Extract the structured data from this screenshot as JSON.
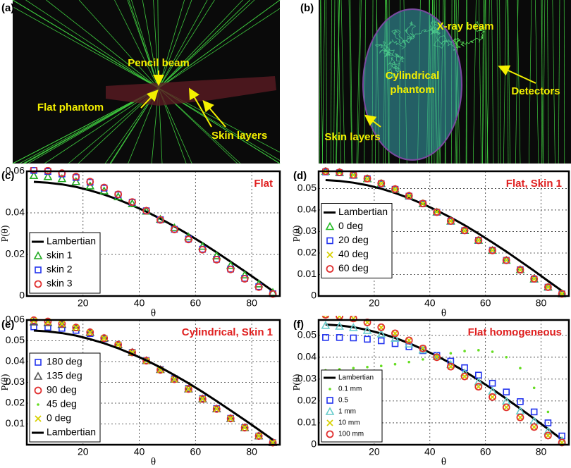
{
  "panels": [
    {
      "label": "(a)",
      "annotations": [
        "Pencil beam",
        "Flat phantom",
        "Skin layers"
      ]
    },
    {
      "label": "(b)",
      "annotations": [
        "X-ray beam",
        "Cylindrical",
        "phantom",
        "Detectors",
        "Skin layers"
      ]
    }
  ],
  "chart_data": [
    {
      "type": "line",
      "label": "(c)",
      "title": "Flat",
      "x_label": "θ",
      "y_label": "P(θ)",
      "x": [
        2.5,
        7.5,
        12.5,
        17.5,
        22.5,
        27.5,
        32.5,
        37.5,
        42.5,
        47.5,
        52.5,
        57.5,
        62.5,
        67.5,
        72.5,
        77.5,
        82.5,
        87.5
      ],
      "xlim": [
        0,
        90
      ],
      "xticks": [
        20,
        40,
        60,
        80
      ],
      "ylim": [
        0,
        0.06
      ],
      "yticks": [
        0,
        0.02,
        0.04,
        0.06
      ],
      "grid": true,
      "legend": "lower left",
      "series": [
        {
          "name": "Lambertian",
          "marker": "line",
          "color": "#000000",
          "values": [
            0.0549,
            0.0545,
            0.0537,
            0.0525,
            0.0508,
            0.0488,
            0.0464,
            0.0436,
            0.0406,
            0.0372,
            0.0335,
            0.0296,
            0.0254,
            0.021,
            0.0165,
            0.0119,
            0.0072,
            0.0024
          ]
        },
        {
          "name": "skin 1",
          "marker": "triangle",
          "color": "#22aa22",
          "values": [
            0.0579,
            0.0574,
            0.0564,
            0.055,
            0.0529,
            0.0505,
            0.0477,
            0.0444,
            0.0408,
            0.0369,
            0.0328,
            0.0284,
            0.0239,
            0.0193,
            0.0147,
            0.0101,
            0.0058,
            0.0017
          ]
        },
        {
          "name": "skin 2",
          "marker": "square",
          "color": "#2233ee",
          "values": [
            0.0604,
            0.0599,
            0.0587,
            0.057,
            0.0547,
            0.0519,
            0.0487,
            0.0451,
            0.041,
            0.0367,
            0.0321,
            0.0274,
            0.0225,
            0.0177,
            0.013,
            0.0085,
            0.0045,
            0.0011
          ]
        },
        {
          "name": "skin 3",
          "marker": "circle",
          "color": "#e03030",
          "values": [
            0.0609,
            0.0603,
            0.0591,
            0.0574,
            0.055,
            0.0522,
            0.0489,
            0.0452,
            0.041,
            0.0366,
            0.032,
            0.0272,
            0.0223,
            0.0175,
            0.0128,
            0.0083,
            0.0043,
            0.001
          ]
        }
      ]
    },
    {
      "type": "line",
      "label": "(d)",
      "title": "Flat, Skin 1",
      "x_label": "θ",
      "y_label": "P(θ)",
      "x": [
        2.5,
        7.5,
        12.5,
        17.5,
        22.5,
        27.5,
        32.5,
        37.5,
        42.5,
        47.5,
        52.5,
        57.5,
        62.5,
        67.5,
        72.5,
        77.5,
        82.5,
        87.5
      ],
      "xlim": [
        0,
        90
      ],
      "xticks": [
        20,
        40,
        60,
        80
      ],
      "ylim": [
        0,
        0.058
      ],
      "yticks": [
        0,
        0.01,
        0.02,
        0.03,
        0.04,
        0.05
      ],
      "grid": true,
      "legend": "center left",
      "series": [
        {
          "name": "Lambertian",
          "marker": "line",
          "color": "#000000",
          "values": [
            0.0539,
            0.0535,
            0.0527,
            0.0515,
            0.0499,
            0.0479,
            0.0455,
            0.0428,
            0.0398,
            0.0365,
            0.0329,
            0.029,
            0.0249,
            0.0207,
            0.0162,
            0.0117,
            0.007,
            0.0024
          ]
        },
        {
          "name": "0 deg",
          "marker": "triangle",
          "color": "#22bb22",
          "values": [
            0.0579,
            0.0574,
            0.0562,
            0.0545,
            0.0523,
            0.0496,
            0.0465,
            0.0429,
            0.039,
            0.0348,
            0.0304,
            0.0259,
            0.0212,
            0.0166,
            0.0122,
            0.0079,
            0.0041,
            0.001
          ]
        },
        {
          "name": "20 deg",
          "marker": "square",
          "color": "#2233ee",
          "values": [
            0.0577,
            0.0573,
            0.0561,
            0.0545,
            0.0522,
            0.0496,
            0.0464,
            0.0429,
            0.039,
            0.0348,
            0.0304,
            0.0259,
            0.0213,
            0.0166,
            0.0122,
            0.0079,
            0.0041,
            0.001
          ]
        },
        {
          "name": "40 deg",
          "marker": "x",
          "color": "#d8d000",
          "values": [
            0.0578,
            0.0574,
            0.0562,
            0.0544,
            0.0523,
            0.0495,
            0.0465,
            0.0429,
            0.0391,
            0.0348,
            0.0304,
            0.0259,
            0.0212,
            0.0166,
            0.0121,
            0.0079,
            0.0041,
            0.001
          ]
        },
        {
          "name": "60 deg",
          "marker": "circle",
          "color": "#e03030",
          "values": [
            0.058,
            0.0575,
            0.0563,
            0.0546,
            0.0524,
            0.0497,
            0.0466,
            0.043,
            0.039,
            0.0349,
            0.0305,
            0.0259,
            0.0212,
            0.0166,
            0.0122,
            0.008,
            0.0041,
            0.001
          ]
        }
      ]
    },
    {
      "type": "line",
      "label": "(e)",
      "title": "Cylindrical, Skin 1",
      "x_label": "θ",
      "y_label": "P(θ)",
      "x": [
        2.5,
        7.5,
        12.5,
        17.5,
        22.5,
        27.5,
        32.5,
        37.5,
        42.5,
        47.5,
        52.5,
        57.5,
        62.5,
        67.5,
        72.5,
        77.5,
        82.5,
        87.5
      ],
      "xlim": [
        0,
        90
      ],
      "xticks": [
        20,
        40,
        60,
        80
      ],
      "ylim": [
        0,
        0.06
      ],
      "yticks": [
        0.01,
        0.02,
        0.03,
        0.04,
        0.05,
        0.06
      ],
      "grid": true,
      "legend": "lower left",
      "series": [
        {
          "name": "180 deg",
          "marker": "square",
          "color": "#2233ee",
          "values": [
            0.0567,
            0.0565,
            0.056,
            0.055,
            0.0535,
            0.051,
            0.048,
            0.0444,
            0.0405,
            0.0362,
            0.0318,
            0.0271,
            0.0222,
            0.0174,
            0.0127,
            0.0082,
            0.0042,
            0.001
          ]
        },
        {
          "name": "135 deg",
          "marker": "triangle",
          "color": "#555555",
          "values": [
            0.059,
            0.0587,
            0.0578,
            0.0562,
            0.054,
            0.0512,
            0.0481,
            0.0444,
            0.0404,
            0.0361,
            0.0315,
            0.0268,
            0.022,
            0.0172,
            0.0126,
            0.0082,
            0.0042,
            0.001
          ]
        },
        {
          "name": "90 deg",
          "marker": "circle",
          "color": "#e03030",
          "values": [
            0.0599,
            0.0593,
            0.0582,
            0.0564,
            0.0541,
            0.0513,
            0.0481,
            0.0444,
            0.0404,
            0.036,
            0.0315,
            0.0268,
            0.022,
            0.0172,
            0.0126,
            0.0082,
            0.0042,
            0.001
          ]
        },
        {
          "name": "45 deg",
          "marker": "dot",
          "color": "#66dd22",
          "values": [
            0.0598,
            0.0592,
            0.0581,
            0.0563,
            0.0541,
            0.0513,
            0.048,
            0.0444,
            0.0404,
            0.036,
            0.0315,
            0.0268,
            0.0221,
            0.0172,
            0.0126,
            0.0082,
            0.0042,
            0.001
          ]
        },
        {
          "name": "0 deg",
          "marker": "x",
          "color": "#d8d000",
          "values": [
            0.0597,
            0.0591,
            0.0581,
            0.0563,
            0.054,
            0.0512,
            0.0481,
            0.0443,
            0.0404,
            0.036,
            0.0314,
            0.0268,
            0.022,
            0.0172,
            0.0126,
            0.0082,
            0.0042,
            0.001
          ]
        },
        {
          "name": "Lambertian",
          "marker": "line",
          "color": "#000000",
          "values": [
            0.0549,
            0.0545,
            0.0537,
            0.0525,
            0.0508,
            0.0488,
            0.0464,
            0.0436,
            0.0406,
            0.0372,
            0.0335,
            0.0296,
            0.0254,
            0.021,
            0.0165,
            0.0119,
            0.0072,
            0.0024
          ]
        }
      ]
    },
    {
      "type": "line",
      "label": "(f)",
      "title": "Flat homogeneous",
      "x_label": "θ",
      "y_label": "P(θ)",
      "x": [
        2.5,
        7.5,
        12.5,
        17.5,
        22.5,
        27.5,
        32.5,
        37.5,
        42.5,
        47.5,
        52.5,
        57.5,
        62.5,
        67.5,
        72.5,
        77.5,
        82.5,
        87.5
      ],
      "xlim": [
        0,
        90
      ],
      "xticks": [
        20,
        40,
        60,
        80
      ],
      "ylim": [
        0,
        0.057
      ],
      "yticks": [
        0,
        0.01,
        0.02,
        0.03,
        0.04,
        0.05
      ],
      "grid": true,
      "legend": "lower left",
      "series": [
        {
          "name": "Lambertian",
          "marker": "line",
          "color": "#000000",
          "values": [
            0.0549,
            0.0545,
            0.0537,
            0.0525,
            0.0508,
            0.0488,
            0.0464,
            0.0436,
            0.0406,
            0.0372,
            0.0335,
            0.0296,
            0.0254,
            0.021,
            0.0165,
            0.0119,
            0.0072,
            0.0024
          ]
        },
        {
          "name": "0.1 mm",
          "marker": "dot",
          "color": "#66dd22",
          "values": [
            0.034,
            0.0345,
            0.035,
            0.0355,
            0.036,
            0.0368,
            0.0378,
            0.039,
            0.0405,
            0.0418,
            0.0428,
            0.0432,
            0.0425,
            0.04,
            0.035,
            0.026,
            0.015,
            0.003
          ]
        },
        {
          "name": "0.5",
          "marker": "square",
          "color": "#2233ee",
          "values": [
            0.049,
            0.049,
            0.0488,
            0.0482,
            0.0475,
            0.0462,
            0.0448,
            0.043,
            0.0408,
            0.0382,
            0.0352,
            0.0318,
            0.0281,
            0.0241,
            0.0197,
            0.015,
            0.01,
            0.004
          ]
        },
        {
          "name": "1 mm",
          "marker": "triangle",
          "color": "#66cccc",
          "values": [
            0.0545,
            0.0541,
            0.0535,
            0.0522,
            0.0506,
            0.0486,
            0.046,
            0.0433,
            0.0402,
            0.0366,
            0.0328,
            0.0287,
            0.0244,
            0.0199,
            0.0154,
            0.0108,
            0.0062,
            0.0018
          ]
        },
        {
          "name": "10 mm",
          "marker": "x",
          "color": "#d8d000",
          "values": [
            0.0593,
            0.0587,
            0.0576,
            0.0559,
            0.0536,
            0.0509,
            0.0477,
            0.044,
            0.04,
            0.0357,
            0.0312,
            0.0265,
            0.0218,
            0.0171,
            0.0125,
            0.0081,
            0.0042,
            0.001
          ]
        },
        {
          "name": "100 mm",
          "marker": "circle",
          "color": "#e03030",
          "values": [
            0.0594,
            0.0588,
            0.0577,
            0.0559,
            0.0537,
            0.0509,
            0.0477,
            0.044,
            0.04,
            0.0357,
            0.0312,
            0.0265,
            0.0218,
            0.0171,
            0.0125,
            0.0081,
            0.0042,
            0.001
          ]
        }
      ]
    }
  ]
}
